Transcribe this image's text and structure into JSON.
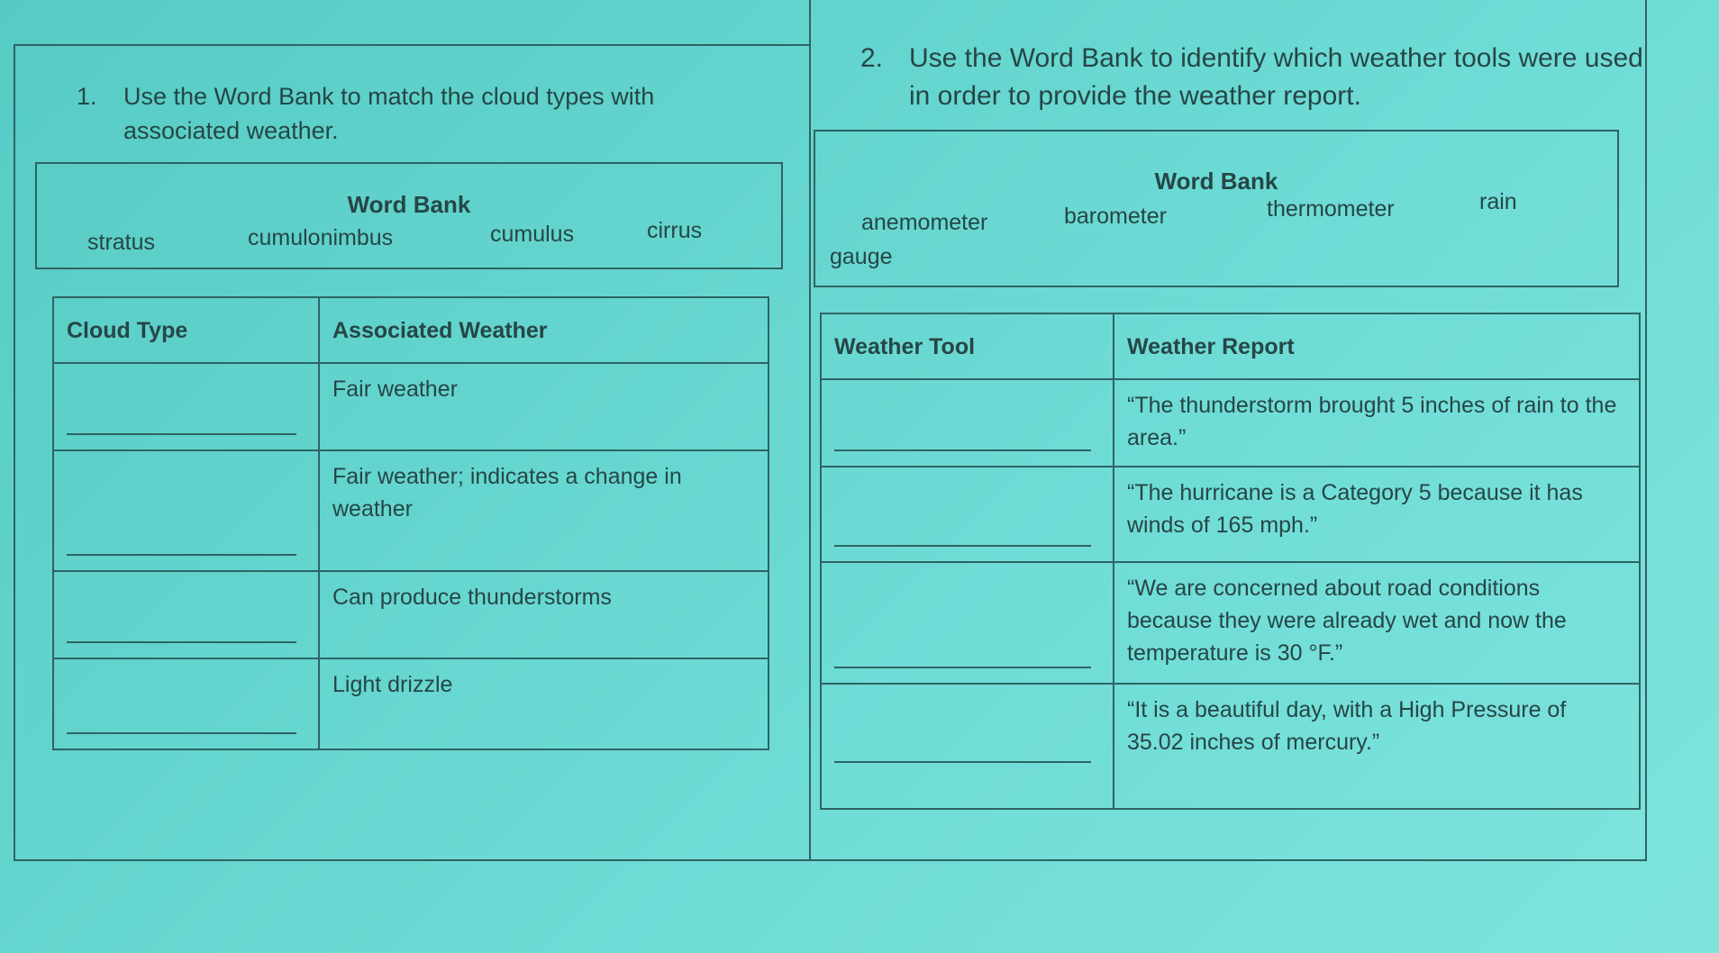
{
  "q1": {
    "number": "1.",
    "text": "Use the Word Bank to match the cloud types with associated weather.",
    "word_bank": {
      "title": "Word Bank",
      "words": [
        "stratus",
        "cumulonimbus",
        "cumulus",
        "cirrus"
      ]
    },
    "table": {
      "headers": [
        "Cloud Type",
        "Associated Weather"
      ],
      "rows": [
        "Fair weather",
        "Fair weather; indicates a change in weather",
        "Can produce thunderstorms",
        "Light drizzle"
      ]
    }
  },
  "q2": {
    "number": "2.",
    "text": "Use the Word Bank to identify which weather tools were used in order to provide the weather report.",
    "word_bank": {
      "title": "Word Bank",
      "words": [
        "anemometer",
        "barometer",
        "thermometer",
        "rain",
        "gauge"
      ]
    },
    "table": {
      "headers": [
        "Weather Tool",
        "Weather Report"
      ],
      "rows": [
        "“The thunderstorm brought 5 inches of rain to the area.”",
        "“The hurricane is a Category 5 because it has winds of 165 mph.”",
        "“We are concerned about road conditions because they were already wet and now the temperature is 30 °F.”",
        "“It is a beautiful day, with a High Pressure of 35.02 inches of mercury.”"
      ]
    }
  }
}
